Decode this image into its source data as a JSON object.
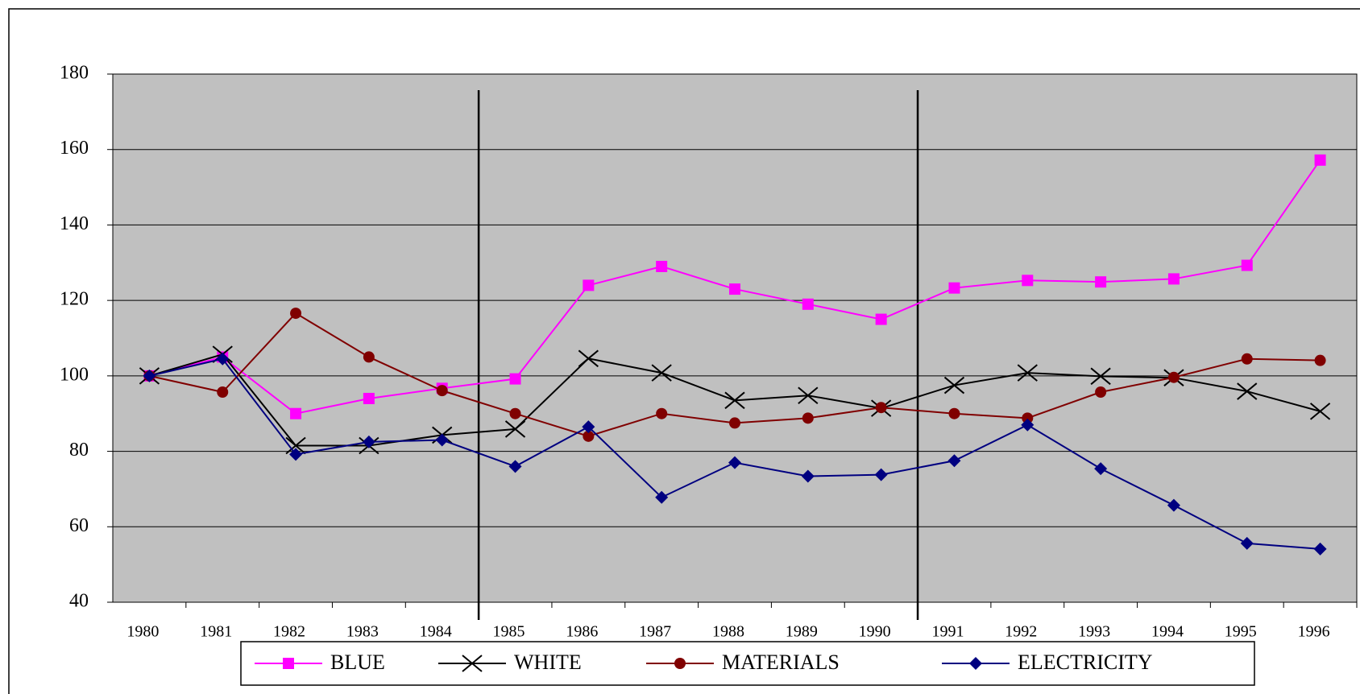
{
  "chart_data": {
    "type": "line",
    "categories": [
      "1980",
      "1981",
      "1982",
      "1983",
      "1984",
      "1985",
      "1986",
      "1987",
      "1988",
      "1989",
      "1990",
      "1991",
      "1992",
      "1993",
      "1994",
      "1995",
      "1996"
    ],
    "ylim": [
      40,
      180
    ],
    "yticks": [
      40,
      60,
      80,
      100,
      120,
      140,
      160,
      180
    ],
    "grid": true,
    "series": [
      {
        "name": "BLUE",
        "color": "#ff00ff",
        "marker": "square",
        "values": [
          100,
          105,
          90,
          94,
          96.7,
          99.2,
          124,
          129,
          123,
          119,
          115,
          123.3,
          125.3,
          124.9,
          125.7,
          129.3,
          157.2
        ]
      },
      {
        "name": "WHITE",
        "color": "#000000",
        "marker": "x",
        "values": [
          100,
          105.7,
          81.5,
          81.5,
          84.3,
          85.9,
          104.6,
          100.8,
          93.5,
          94.8,
          91.4,
          97.5,
          100.8,
          99.9,
          99.5,
          95.9,
          90.6
        ]
      },
      {
        "name": "MATERIALS",
        "color": "#800000",
        "marker": "circle",
        "values": [
          100,
          95.7,
          116.6,
          105,
          96.1,
          90,
          84,
          90,
          87.5,
          88.8,
          91.6,
          90,
          88.8,
          95.7,
          99.6,
          104.5,
          104.1
        ]
      },
      {
        "name": "ELECTRICITY",
        "color": "#000080",
        "marker": "diamond",
        "values": [
          100,
          104.5,
          79.2,
          82.5,
          83,
          76,
          86.5,
          67.8,
          77,
          73.4,
          73.8,
          77.5,
          87,
          75.4,
          65.7,
          55.6,
          54.1
        ]
      }
    ]
  }
}
